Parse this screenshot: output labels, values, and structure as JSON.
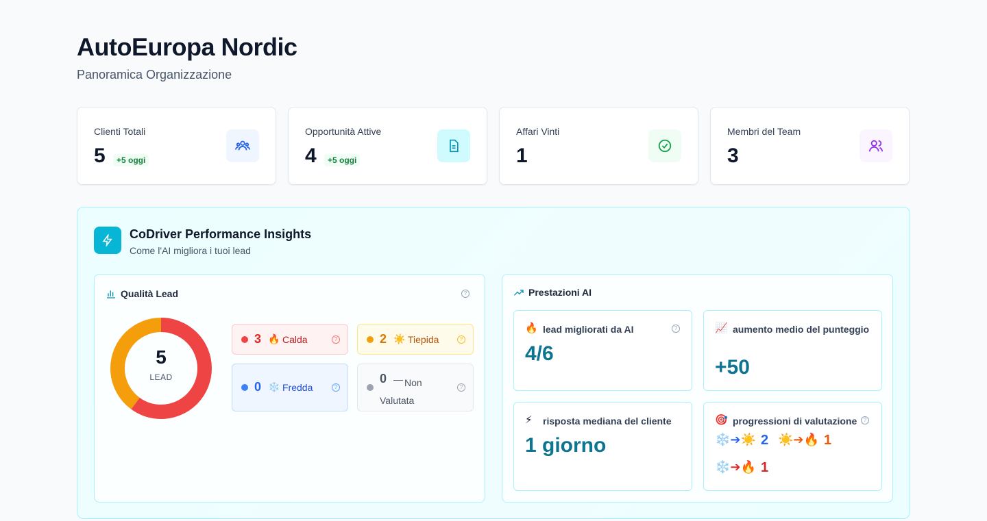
{
  "header": {
    "title": "AutoEuropa Nordic",
    "subtitle": "Panoramica Organizzazione"
  },
  "stats": [
    {
      "label": "Clienti Totali",
      "value": 5,
      "badge": "+5 oggi"
    },
    {
      "label": "Opportunità Attive",
      "value": 4,
      "badge": "+5 oggi"
    },
    {
      "label": "Affari Vinti",
      "value": 1
    },
    {
      "label": "Membri del Team",
      "value": 3
    }
  ],
  "insights": {
    "title": "CoDriver Performance Insights",
    "subtitle": "Come l'AI migliora i tuoi lead",
    "lead_quality": {
      "title": "Qualità Lead",
      "total": 5,
      "total_label": "LEAD",
      "segments": [
        {
          "count": 3,
          "icon": "🔥",
          "label": "Calda",
          "color": "#ef4444"
        },
        {
          "count": 2,
          "icon": "☀️",
          "label": "Tiepida",
          "color": "#f59e0b"
        },
        {
          "count": 0,
          "icon": "❄️",
          "label": "Fredda",
          "color": "#3b82f6"
        },
        {
          "count": 0,
          "icon": "—",
          "label": "Non Valutata",
          "color": "#9ca3af"
        }
      ]
    },
    "ai_performance": {
      "title": "Prestazioni AI",
      "cards": [
        {
          "icon": "🔥",
          "label": "lead migliorati da AI",
          "value": "4/6"
        },
        {
          "icon": "📈",
          "label": "aumento medio del punteggio",
          "value": "+50"
        },
        {
          "icon": "⚡",
          "label": "risposta mediana del cliente",
          "value": "1 giorno"
        },
        {
          "icon": "🎯",
          "label": "progressioni di valutazione",
          "progressions": [
            {
              "path": "❄️➔☀️",
              "count": 2,
              "color": "#2563eb"
            },
            {
              "path": "☀️➔🔥",
              "count": 1,
              "color": "#ea580c"
            },
            {
              "path": "❄️➔🔥",
              "count": 1,
              "color": "#dc2626"
            }
          ]
        }
      ]
    }
  }
}
